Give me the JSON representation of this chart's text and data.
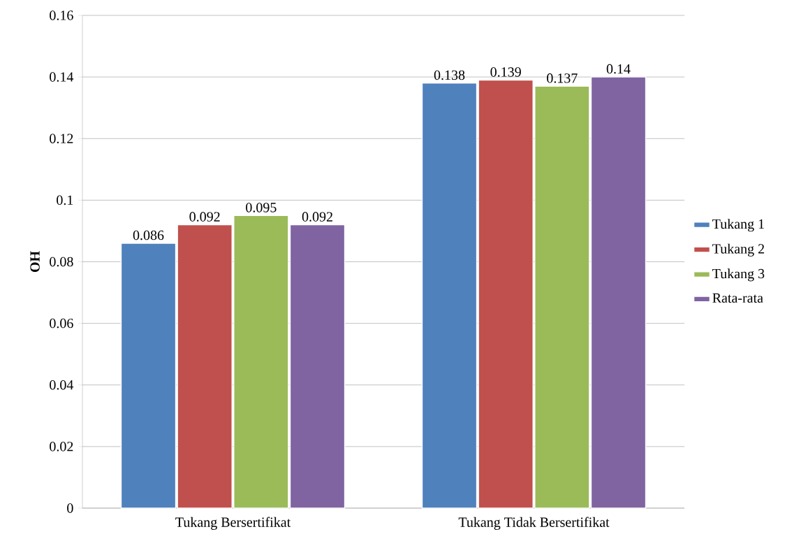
{
  "chart_data": {
    "type": "bar",
    "ylabel": "OH",
    "categories": [
      "Tukang Bersertifikat",
      "Tukang Tidak Bersertifikat"
    ],
    "series": [
      {
        "name": "Tukang 1",
        "color": "#4f81bd",
        "values": [
          0.086,
          0.138
        ]
      },
      {
        "name": "Tukang 2",
        "color": "#c0504d",
        "values": [
          0.092,
          0.139
        ]
      },
      {
        "name": "Tukang 3",
        "color": "#9bbb59",
        "values": [
          0.095,
          0.137
        ]
      },
      {
        "name": "Rata-rata",
        "color": "#8064a2",
        "values": [
          0.092,
          0.14
        ]
      }
    ],
    "ylim": [
      0,
      0.16
    ],
    "yticks": [
      0,
      0.02,
      0.04,
      0.06,
      0.08,
      0.1,
      0.12,
      0.14,
      0.16
    ],
    "grid": "y",
    "legend": "right",
    "data_labels": true
  }
}
